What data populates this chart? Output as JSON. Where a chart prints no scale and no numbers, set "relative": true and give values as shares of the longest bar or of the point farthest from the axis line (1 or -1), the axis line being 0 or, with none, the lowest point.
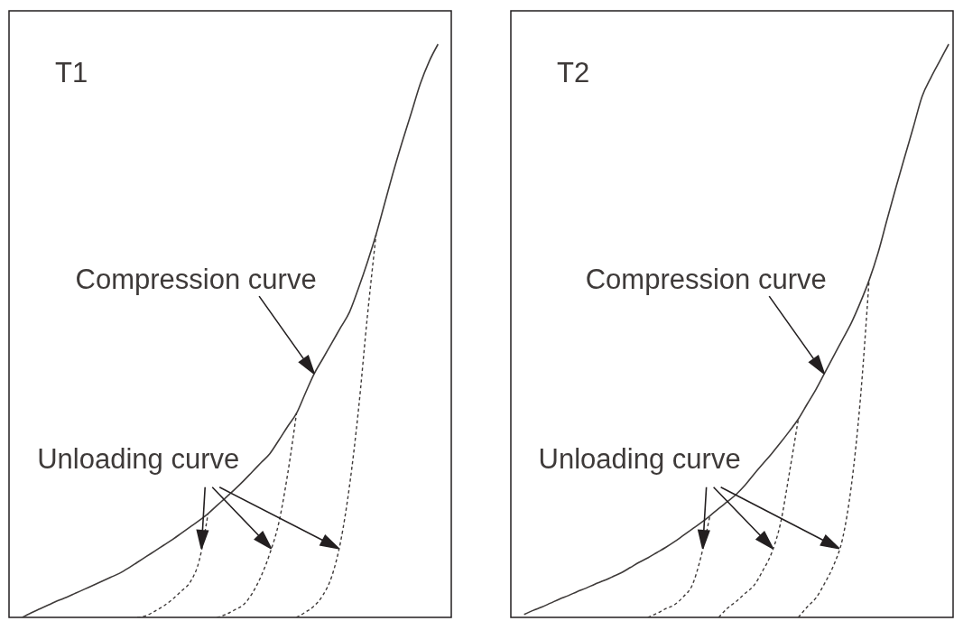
{
  "chart_data": [
    {
      "type": "line",
      "title": "T1",
      "relative": true,
      "categories": [
        null,
        null,
        null,
        null,
        null,
        null,
        null,
        null,
        null,
        null,
        null,
        null,
        null,
        null,
        null,
        null,
        null,
        null,
        null,
        null,
        null,
        null,
        null,
        null,
        null,
        null,
        null,
        null,
        null,
        null,
        null,
        null,
        null,
        null,
        null,
        null,
        null,
        null,
        null,
        null,
        null,
        null,
        null,
        null,
        null,
        null,
        null,
        null,
        null,
        null
      ],
      "series": [
        {
          "color": "#3e3a39",
          "line_style": "solid",
          "values": [
            null,
            0,
            0.008,
            0.015,
            0.022,
            0.029,
            0.035,
            0.042,
            0.049,
            0.056,
            0.063,
            0.07,
            0.077,
            0.086,
            0.096,
            0.106,
            0.116,
            0.126,
            0.136,
            0.147,
            0.158,
            0.169,
            0.181,
            0.195,
            0.209,
            0.223,
            0.238,
            0.254,
            0.27,
            0.286,
            0.309,
            0.333,
            0.356,
            0.391,
            0.425,
            0.452,
            0.479,
            0.506,
            0.533,
            0.574,
            0.619,
            0.668,
            0.724,
            0.78,
            0.832,
            0.881,
            0.931,
            0.97,
            1,
            null
          ]
        },
        {
          "color": "#3e3a39",
          "line_style": "dashed",
          "values": [
            null,
            null,
            null,
            null,
            null,
            null,
            null,
            null,
            null,
            null,
            null,
            null,
            null,
            null,
            0,
            0.003,
            0.011,
            0.02,
            0.032,
            0.046,
            0.062,
            0.099,
            0.181,
            null,
            null,
            null,
            null,
            null,
            null,
            null,
            null,
            null,
            null,
            null,
            null,
            null,
            null,
            null,
            null,
            null,
            null,
            null,
            null,
            null,
            null,
            null,
            null,
            null,
            null,
            null
          ]
        },
        {
          "color": "#3e3a39",
          "line_style": "dashed",
          "values": [
            null,
            null,
            null,
            null,
            null,
            null,
            null,
            null,
            null,
            null,
            null,
            null,
            null,
            null,
            null,
            null,
            null,
            null,
            null,
            null,
            null,
            null,
            null,
            0,
            0.005,
            0.013,
            0.022,
            0.042,
            0.072,
            0.112,
            0.165,
            0.25,
            0.356,
            null,
            null,
            null,
            null,
            null,
            null,
            null,
            null,
            null,
            null,
            null,
            null,
            null,
            null,
            null,
            null,
            null
          ]
        },
        {
          "color": "#3e3a39",
          "line_style": "dashed",
          "values": [
            null,
            null,
            null,
            null,
            null,
            null,
            null,
            null,
            null,
            null,
            null,
            null,
            null,
            null,
            null,
            null,
            null,
            null,
            null,
            null,
            null,
            null,
            null,
            null,
            null,
            null,
            null,
            null,
            null,
            null,
            null,
            null,
            0,
            0.009,
            0.02,
            0.039,
            0.072,
            0.133,
            0.23,
            0.361,
            0.523,
            0.668,
            null,
            null,
            null,
            null,
            null,
            null,
            null,
            null
          ]
        }
      ],
      "annotations": [
        "Compression curve",
        "Unloading curve"
      ]
    },
    {
      "type": "line",
      "title": "T2",
      "relative": true,
      "categories": [
        null,
        null,
        null,
        null,
        null,
        null,
        null,
        null,
        null,
        null,
        null,
        null,
        null,
        null,
        null,
        null,
        null,
        null,
        null,
        null,
        null,
        null,
        null,
        null,
        null,
        null,
        null,
        null,
        null,
        null,
        null,
        null,
        null,
        null,
        null,
        null,
        null,
        null,
        null,
        null,
        null,
        null,
        null,
        null,
        null,
        null,
        null,
        null,
        null,
        null
      ],
      "series": [
        {
          "color": "#3e3a39",
          "line_style": "solid",
          "values": [
            null,
            0.005,
            0.012,
            0.018,
            0.025,
            0.032,
            0.038,
            0.045,
            0.051,
            0.058,
            0.064,
            0.071,
            0.078,
            0.087,
            0.096,
            0.104,
            0.113,
            0.122,
            0.132,
            0.143,
            0.154,
            0.165,
            0.177,
            0.19,
            0.202,
            0.215,
            0.231,
            0.25,
            0.268,
            0.286,
            0.305,
            0.325,
            0.346,
            0.372,
            0.398,
            0.427,
            0.456,
            0.485,
            0.514,
            0.549,
            0.588,
            0.635,
            0.692,
            0.748,
            0.802,
            0.855,
            0.909,
            0.942,
            0.971,
            1
          ]
        },
        {
          "color": "#3e3a39",
          "line_style": "dashed",
          "values": [
            null,
            null,
            null,
            null,
            null,
            null,
            null,
            null,
            null,
            null,
            null,
            null,
            null,
            null,
            null,
            0,
            0.007,
            0.015,
            0.022,
            0.036,
            0.056,
            0.106,
            0.177,
            null,
            null,
            null,
            null,
            null,
            null,
            null,
            null,
            null,
            null,
            null,
            null,
            null,
            null,
            null,
            null,
            null,
            null,
            null,
            null,
            null,
            null,
            null,
            null,
            null,
            null,
            null
          ]
        },
        {
          "color": "#3e3a39",
          "line_style": "dashed",
          "values": [
            null,
            null,
            null,
            null,
            null,
            null,
            null,
            null,
            null,
            null,
            null,
            null,
            null,
            null,
            null,
            null,
            null,
            null,
            null,
            null,
            null,
            null,
            null,
            0,
            0.016,
            0.028,
            0.042,
            0.056,
            0.082,
            0.113,
            0.165,
            0.253,
            0.346,
            null,
            null,
            null,
            null,
            null,
            null,
            null,
            null,
            null,
            null,
            null,
            null,
            null,
            null,
            null,
            null,
            null
          ]
        },
        {
          "color": "#3e3a39",
          "line_style": "dashed",
          "values": [
            null,
            null,
            null,
            null,
            null,
            null,
            null,
            null,
            null,
            null,
            null,
            null,
            null,
            null,
            null,
            null,
            null,
            null,
            null,
            null,
            null,
            null,
            null,
            null,
            null,
            null,
            null,
            null,
            null,
            null,
            null,
            null,
            0,
            0.018,
            0.034,
            0.06,
            0.091,
            0.137,
            0.23,
            0.378,
            0.588,
            null,
            null,
            null,
            null,
            null,
            null,
            null,
            null,
            null
          ]
        }
      ],
      "annotations": [
        "Compression curve",
        "Unloading curve"
      ]
    }
  ]
}
